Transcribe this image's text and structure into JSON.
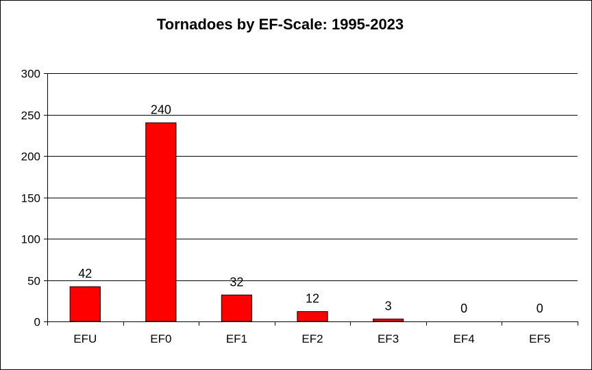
{
  "chart_data": {
    "type": "bar",
    "title": "Tornadoes by EF-Scale: 1995-2023",
    "xlabel": "",
    "ylabel": "",
    "categories": [
      "EFU",
      "EF0",
      "EF1",
      "EF2",
      "EF3",
      "EF4",
      "EF5"
    ],
    "values": [
      42,
      240,
      32,
      12,
      3,
      0,
      0
    ],
    "data_labels": [
      "42",
      "240",
      "32",
      "12",
      "3",
      "0",
      "0"
    ],
    "ylim": [
      0,
      300
    ],
    "yticks": [
      0,
      50,
      100,
      150,
      200,
      250,
      300
    ],
    "ytick_labels": [
      "0",
      "50",
      "100",
      "150",
      "200",
      "250",
      "300"
    ],
    "grid": true,
    "legend": "none",
    "bar_color": "#ff0000",
    "bar_edge_color": "#000000"
  }
}
